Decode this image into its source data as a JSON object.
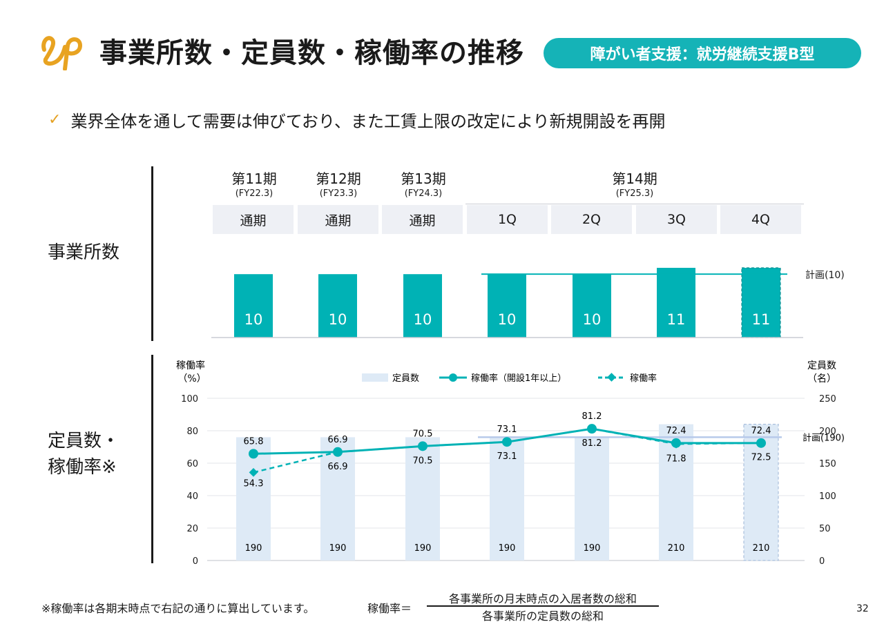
{
  "header": {
    "title": "事業所数・定員数・稼働率の推移",
    "badge": "障がい者支援：就労継続支援B型"
  },
  "bullet": {
    "text": "業界全体を通して需要は伸びており、また工賃上限の改定により新規開設を再開"
  },
  "sections": {
    "offices_label": "事業所数",
    "capacity_label_line1": "定員数・",
    "capacity_label_line2": "稼働率※"
  },
  "terms": [
    {
      "name": "第11期",
      "fy": "(FY22.3)"
    },
    {
      "name": "第12期",
      "fy": "(FY23.3)"
    },
    {
      "name": "第13期",
      "fy": "(FY24.3)"
    },
    {
      "name": "第14期",
      "fy": "(FY25.3)"
    }
  ],
  "periods": [
    "通期",
    "通期",
    "通期",
    "1Q",
    "2Q",
    "3Q",
    "4Q"
  ],
  "colors": {
    "teal": "#00b2b5",
    "badge": "#15b3b7",
    "capacity_bar": "#deeaf6",
    "plan_line_capacity": "#b7c9ea",
    "logo": "#e8a321",
    "check": "#e5a224"
  },
  "chart_data": [
    {
      "type": "bar",
      "categories": [
        "第11期 通期",
        "第12期 通期",
        "第13期 通期",
        "第14期 1Q",
        "第14期 2Q",
        "第14期 3Q",
        "第14期 4Q"
      ],
      "values": [
        10,
        10,
        10,
        10,
        10,
        11,
        11
      ],
      "value_labels": [
        "10",
        "10",
        "10",
        "10",
        "10",
        "11",
        "11"
      ],
      "plan": {
        "label": "計画(10)",
        "value": 10
      },
      "forecast_index": 6,
      "ylim": [
        0,
        11
      ]
    },
    {
      "type": "bar",
      "categories": [
        "第11期 通期",
        "第12期 通期",
        "第13期 通期",
        "第14期 1Q",
        "第14期 2Q",
        "第14期 3Q",
        "第14期 4Q"
      ],
      "left_axis": {
        "label_line1": "稼働率",
        "label_line2": "（%）",
        "min": 0,
        "max": 100,
        "ticks": [
          "0",
          "20",
          "40",
          "60",
          "80",
          "100"
        ]
      },
      "right_axis": {
        "label_line1": "定員数",
        "label_line2": "（名）",
        "min": 0,
        "max": 250,
        "ticks": [
          "0",
          "50",
          "100",
          "150",
          "200",
          "250"
        ]
      },
      "legend": {
        "capacity": "定員数",
        "rate_1yr": "稼働率（開設1年以上）",
        "rate_all": "稼働率",
        "placement": "top-center"
      },
      "series": [
        {
          "name": "定員数",
          "axis": "right",
          "kind": "bar",
          "values": [
            190,
            190,
            190,
            190,
            190,
            210,
            210
          ],
          "labels": [
            "190",
            "190",
            "190",
            "190",
            "190",
            "210",
            "210"
          ]
        },
        {
          "name": "稼働率（開設1年以上）",
          "axis": "left",
          "kind": "line",
          "values": [
            65.8,
            66.9,
            70.5,
            73.1,
            81.2,
            72.4,
            72.4
          ],
          "labels": [
            "65.8",
            "66.9",
            "70.5",
            "73.1",
            "81.2",
            "72.4",
            "72.4"
          ]
        },
        {
          "name": "稼働率",
          "axis": "left",
          "kind": "dashed-line",
          "values": [
            54.3,
            66.9,
            70.5,
            73.1,
            81.2,
            71.8,
            72.5
          ],
          "labels": [
            "54.3",
            "66.9",
            "70.5",
            "73.1",
            "81.2",
            "71.8",
            "72.5"
          ]
        }
      ],
      "plan": {
        "label": "計画(190)",
        "value": 190,
        "axis": "right"
      },
      "forecast_index": 6,
      "grid": true
    }
  ],
  "footnote": {
    "note": "※稼働率は各期末時点で右記の通りに算出しています。",
    "formula_label": "稼働率＝",
    "numerator": "各事業所の月末時点の入居者数の総和",
    "denominator": "各事業所の定員数の総和"
  },
  "page_number": "32"
}
